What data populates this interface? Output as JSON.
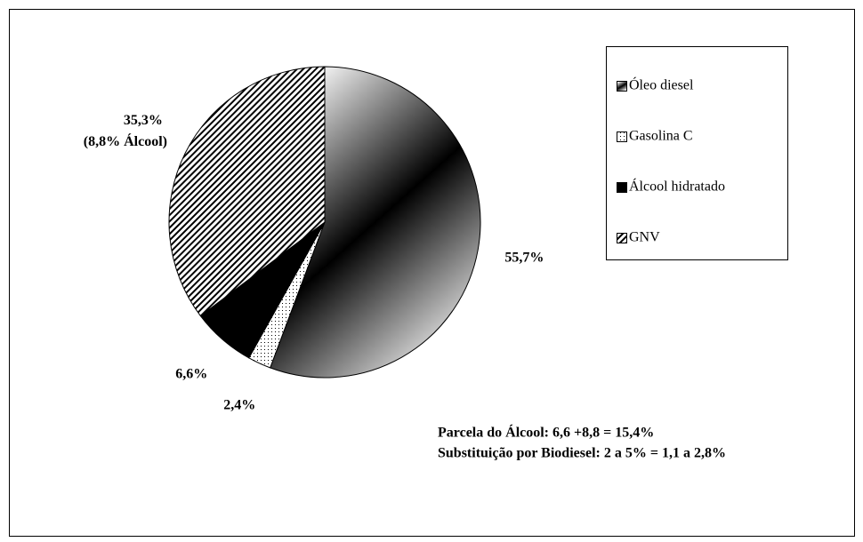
{
  "chart_data": {
    "type": "pie",
    "categories": [
      "Óleo diesel",
      "Gasolina C",
      "Álcool hidratado",
      "GNV"
    ],
    "values": [
      55.7,
      2.4,
      6.6,
      35.3
    ],
    "value_labels": [
      "55,7%",
      "2,4%",
      "6,6%",
      "35,3%"
    ],
    "slice_notes": [
      null,
      null,
      null,
      "(8,8% Álcool)"
    ],
    "patterns": [
      "gradient",
      "dots",
      "solid",
      "hatch"
    ],
    "color": "#000000",
    "legend": "right",
    "annotations": [
      "Parcela do Álcool: 6,6 +8,8 = 15,4%",
      "Substituição por Biodiesel: 2 a 5% = 1,1 a 2,8%"
    ]
  }
}
